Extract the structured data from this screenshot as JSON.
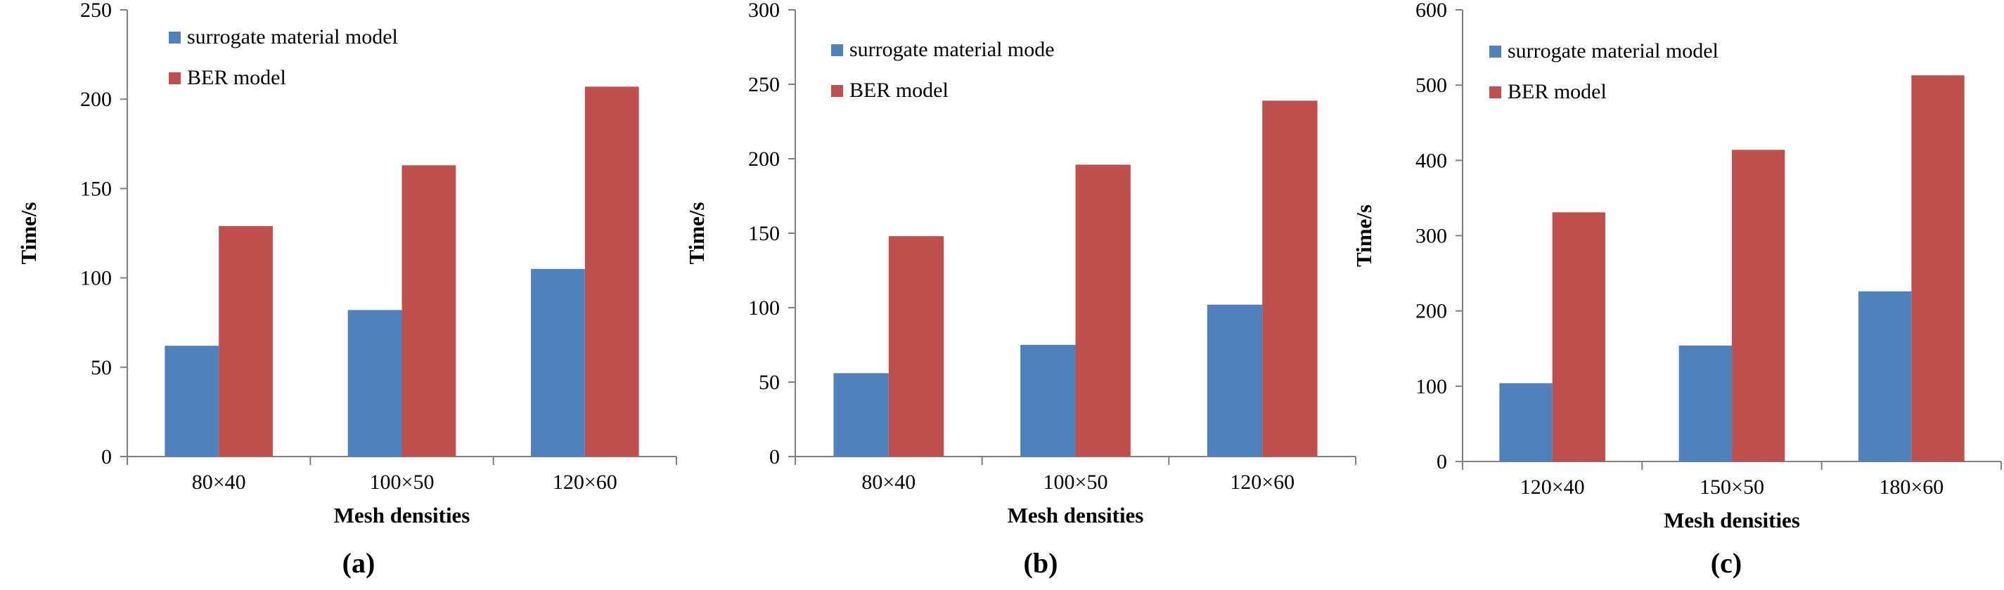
{
  "colors": {
    "surrogate": "#4F81BD",
    "ber": "#C0504D",
    "axis": "#808080"
  },
  "chart_data": [
    {
      "type": "bar",
      "panel_label": "(a)",
      "categories": [
        "80×40",
        "100×50",
        "120×60"
      ],
      "series": [
        {
          "name": "surrogate material model",
          "values": [
            62,
            82,
            105
          ]
        },
        {
          "name": "BER model",
          "values": [
            129,
            163,
            207
          ]
        }
      ],
      "xlabel": "Mesh densities",
      "ylabel": "Time/s",
      "ylim": [
        0,
        250
      ],
      "yticks": [
        "0",
        "50",
        "100",
        "150",
        "200",
        "250"
      ],
      "legend_position": "top-left"
    },
    {
      "type": "bar",
      "panel_label": "(b)",
      "categories": [
        "80×40",
        "100×50",
        "120×60"
      ],
      "series": [
        {
          "name": "surrogate material mode",
          "values": [
            56,
            75,
            102
          ]
        },
        {
          "name": "BER model",
          "values": [
            148,
            196,
            239
          ]
        }
      ],
      "xlabel": "Mesh densities",
      "ylabel": "Time/s",
      "ylim": [
        0,
        300
      ],
      "yticks": [
        "0",
        "50",
        "100",
        "150",
        "200",
        "250",
        "300"
      ],
      "legend_position": "top-left"
    },
    {
      "type": "bar",
      "panel_label": "(c)",
      "categories": [
        "120×40",
        "150×50",
        "180×60"
      ],
      "series": [
        {
          "name": "surrogate material model",
          "values": [
            104,
            154,
            226
          ]
        },
        {
          "name": "BER model",
          "values": [
            331,
            414,
            513
          ]
        }
      ],
      "xlabel": "Mesh densities",
      "ylabel": "Time/s",
      "ylim": [
        0,
        600
      ],
      "yticks": [
        "0",
        "100",
        "200",
        "300",
        "400",
        "500",
        "600"
      ],
      "legend_position": "top-left"
    }
  ]
}
